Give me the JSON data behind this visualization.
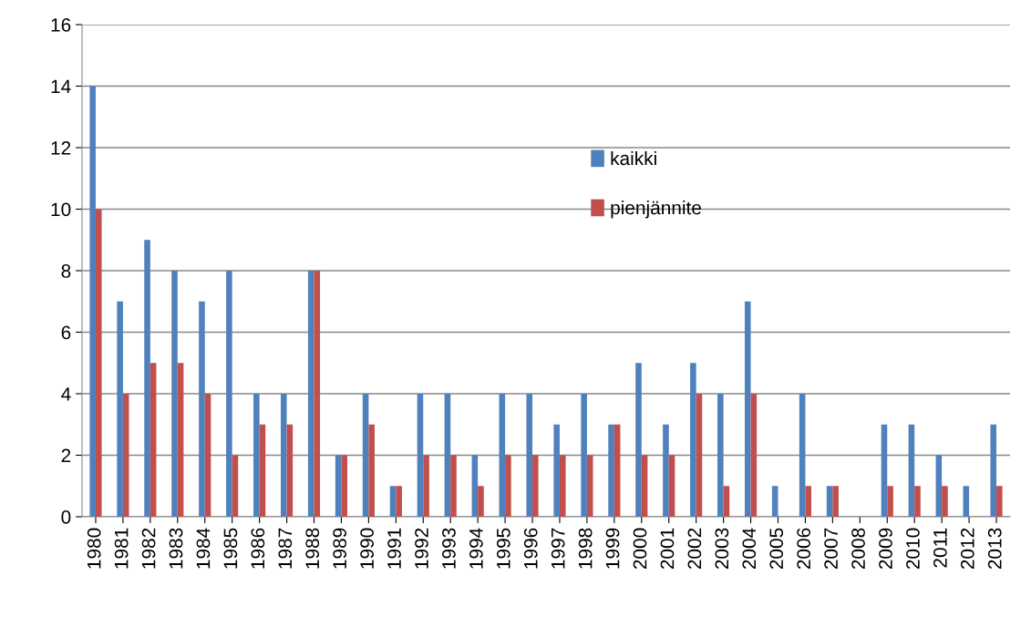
{
  "chart_data": {
    "type": "bar",
    "categories": [
      "1980",
      "1981",
      "1982",
      "1983",
      "1984",
      "1985",
      "1986",
      "1987",
      "1988",
      "1989",
      "1990",
      "1991",
      "1992",
      "1993",
      "1994",
      "1995",
      "1996",
      "1997",
      "1998",
      "1999",
      "2000",
      "2001",
      "2002",
      "2003",
      "2004",
      "2005",
      "2006",
      "2007",
      "2008",
      "2009",
      "2010",
      "2011",
      "2012",
      "2013"
    ],
    "series": [
      {
        "name": "kaikki",
        "color": "#4f81bd",
        "values": [
          14,
          7,
          9,
          8,
          7,
          8,
          4,
          4,
          8,
          2,
          4,
          1,
          4,
          4,
          2,
          4,
          4,
          3,
          4,
          3,
          5,
          3,
          5,
          4,
          7,
          1,
          4,
          1,
          0,
          3,
          3,
          2,
          1,
          3
        ]
      },
      {
        "name": "pienjännite",
        "color": "#c0504d",
        "values": [
          10,
          4,
          5,
          5,
          4,
          2,
          3,
          3,
          8,
          2,
          3,
          1,
          2,
          2,
          1,
          2,
          2,
          2,
          2,
          3,
          2,
          2,
          4,
          1,
          4,
          0,
          1,
          1,
          0,
          1,
          1,
          1,
          0,
          1
        ]
      }
    ],
    "ylim": [
      0,
      16
    ],
    "yticks": [
      0,
      2,
      4,
      6,
      8,
      10,
      12,
      14,
      16
    ],
    "grid": "y",
    "legend": "top"
  }
}
